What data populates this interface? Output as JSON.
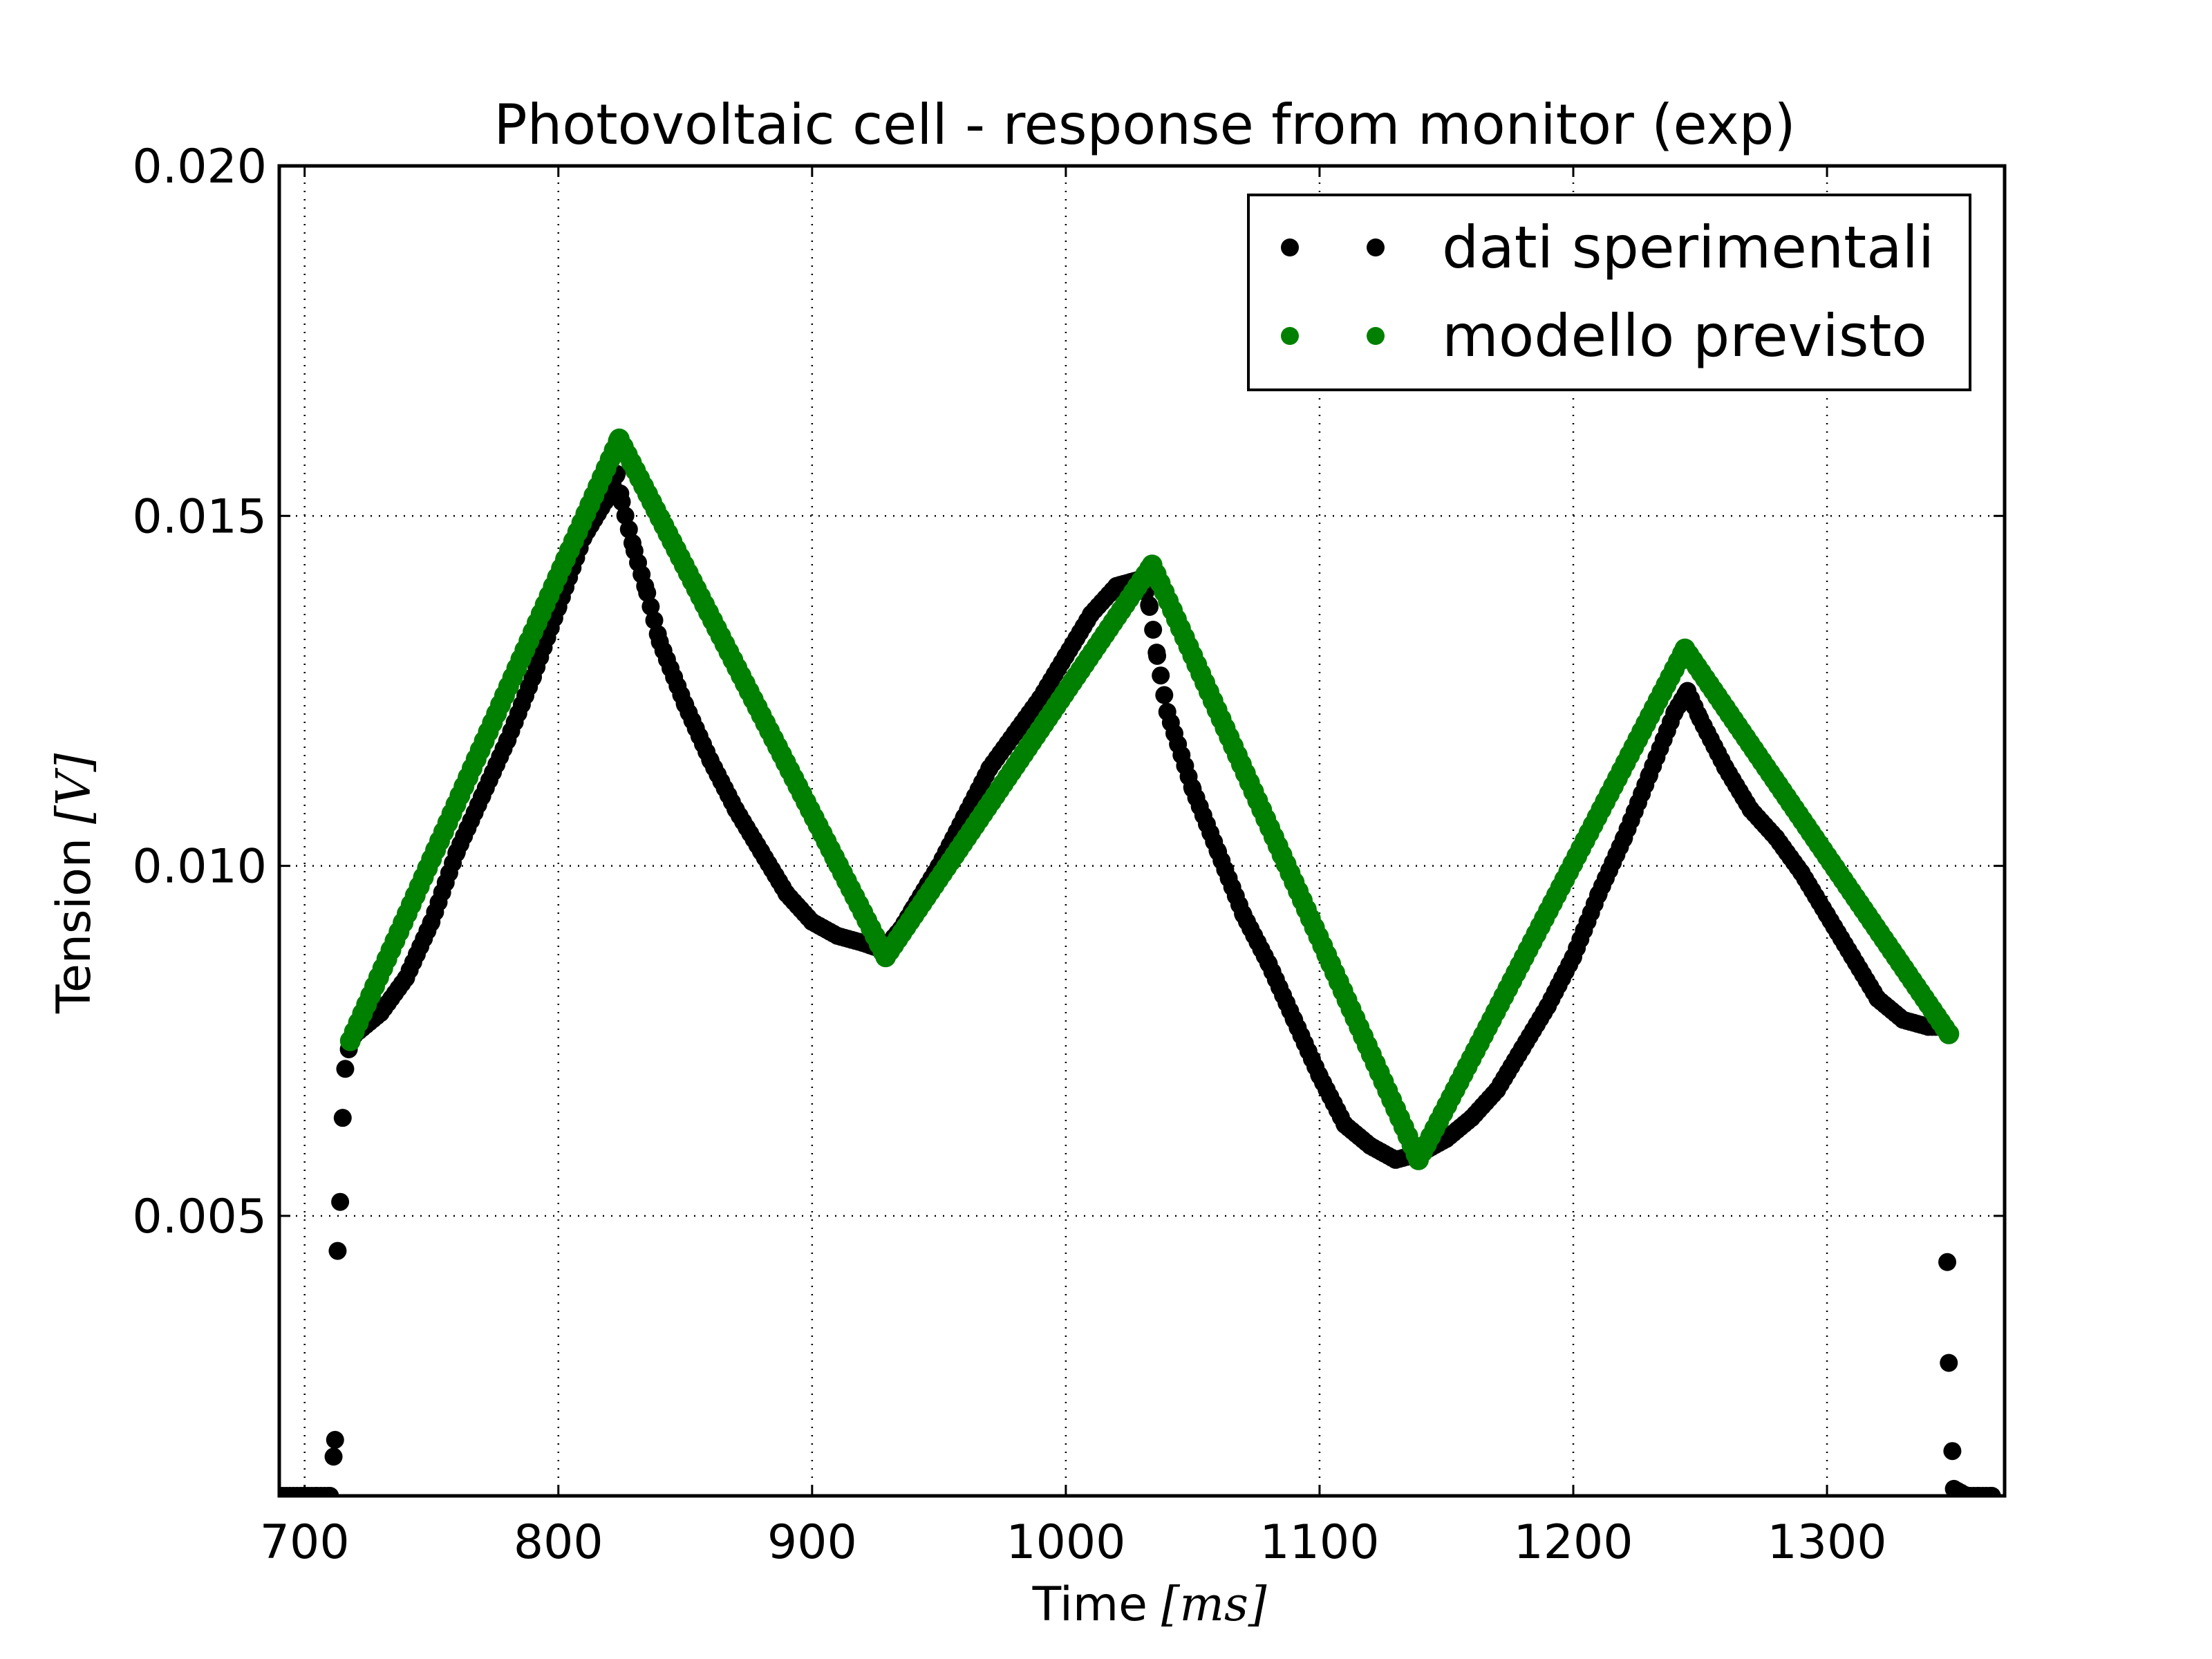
{
  "chart_data": {
    "type": "scatter",
    "title": "Photovoltaic cell - response from monitor (exp)",
    "xlabel": {
      "text": "Time",
      "unit": "[ms]"
    },
    "ylabel": {
      "text": "Tension",
      "unit": "[V]"
    },
    "xlim": [
      690,
      1370
    ],
    "ylim": [
      0.001,
      0.02
    ],
    "xticks": [
      700,
      800,
      900,
      1000,
      1100,
      1200,
      1300
    ],
    "xtick_labels": [
      "700",
      "800",
      "900",
      "1000",
      "1100",
      "1200",
      "1300"
    ],
    "yticks": [
      0.005,
      0.01,
      0.015,
      0.02
    ],
    "ytick_labels": [
      "0.005",
      "0.010",
      "0.015",
      "0.020"
    ],
    "grid": true,
    "legend_position": "top-right",
    "series": [
      {
        "name": "dati sperimentali",
        "color": "#000000",
        "x": [
          690,
          700,
          705,
          710,
          712,
          713,
          714,
          715,
          716,
          718,
          720,
          730,
          740,
          750,
          760,
          770,
          780,
          790,
          800,
          810,
          820,
          823,
          825,
          830,
          835,
          840,
          850,
          860,
          870,
          880,
          890,
          900,
          910,
          920,
          928,
          935,
          940,
          950,
          960,
          970,
          980,
          990,
          1000,
          1010,
          1020,
          1030,
          1033,
          1036,
          1040,
          1050,
          1060,
          1070,
          1080,
          1090,
          1100,
          1110,
          1120,
          1130,
          1140,
          1150,
          1160,
          1170,
          1180,
          1190,
          1200,
          1210,
          1220,
          1230,
          1240,
          1245,
          1250,
          1260,
          1270,
          1280,
          1290,
          1300,
          1310,
          1320,
          1330,
          1340,
          1346,
          1348,
          1350,
          1355,
          1360,
          1365
        ],
        "y": [
          0.001,
          0.001,
          0.001,
          0.001,
          0.0018,
          0.0045,
          0.0052,
          0.0064,
          0.0071,
          0.0075,
          0.0076,
          0.0079,
          0.0084,
          0.0092,
          0.0102,
          0.011,
          0.0118,
          0.0127,
          0.0137,
          0.0147,
          0.0153,
          0.0156,
          0.0152,
          0.0145,
          0.0139,
          0.0132,
          0.0123,
          0.0115,
          0.0108,
          0.0102,
          0.0096,
          0.0092,
          0.009,
          0.0089,
          0.0088,
          0.0091,
          0.0094,
          0.01,
          0.0107,
          0.0114,
          0.0119,
          0.0124,
          0.013,
          0.0136,
          0.014,
          0.0141,
          0.0137,
          0.013,
          0.0122,
          0.0111,
          0.0102,
          0.0093,
          0.0086,
          0.0078,
          0.007,
          0.0063,
          0.006,
          0.0058,
          0.0059,
          0.0061,
          0.0064,
          0.0068,
          0.0074,
          0.008,
          0.0087,
          0.0096,
          0.0104,
          0.0113,
          0.0122,
          0.0125,
          0.0121,
          0.0114,
          0.0108,
          0.0104,
          0.0099,
          0.0093,
          0.0087,
          0.0081,
          0.0078,
          0.0077,
          0.0077,
          0.0029,
          0.0011,
          0.001,
          0.001,
          0.001
        ]
      },
      {
        "name": "modello previsto",
        "color": "#008000",
        "x": [
          718,
          824,
          929,
          1034,
          1139,
          1244,
          1348
        ],
        "y": [
          0.0075,
          0.0161,
          0.0087,
          0.0143,
          0.0058,
          0.0131,
          0.0076
        ]
      }
    ]
  }
}
